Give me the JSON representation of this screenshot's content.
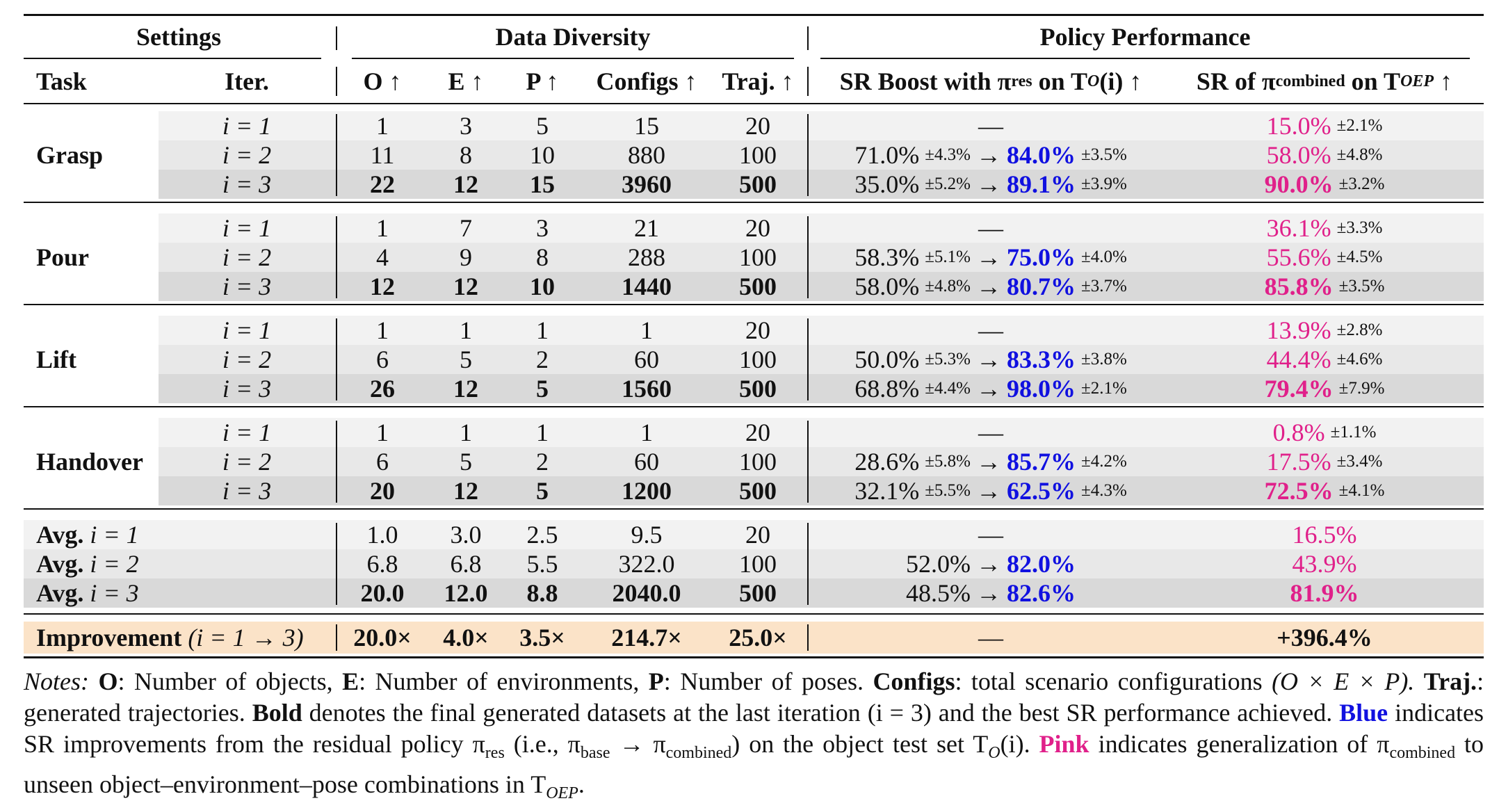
{
  "header": {
    "settings": "Settings",
    "data_diversity": "Data Diversity",
    "policy_performance": "Policy Performance",
    "task": "Task",
    "iter": "Iter.",
    "o": "O ↑",
    "e": "E ↑",
    "p": "P ↑",
    "configs": "Configs ↑",
    "traj": "Traj. ↑",
    "sr_boost": "SR Boost with π",
    "sr_boost_sub": "res",
    "sr_boost_on": "on T",
    "sr_boost_tail": "(i) ↑",
    "sr_of": "SR of π",
    "sr_of_sub": "combined",
    "sr_of_on": "on T",
    "sr_of_tail": "↑",
    "o_sub": "O",
    "oep_sub": "OEP"
  },
  "tasks": [
    {
      "name": "Grasp",
      "rows": [
        {
          "iter": "i = 1",
          "o": "1",
          "e": "3",
          "p": "5",
          "configs": "15",
          "traj": "20",
          "base": "—",
          "base_pm": "",
          "boost": "",
          "boost_pm": "",
          "comb": "15.0%",
          "comb_pm": "±2.1%"
        },
        {
          "iter": "i = 2",
          "o": "11",
          "e": "8",
          "p": "10",
          "configs": "880",
          "traj": "100",
          "base": "71.0%",
          "base_pm": "±4.3%",
          "boost": "84.0%",
          "boost_pm": "±3.5%",
          "comb": "58.0%",
          "comb_pm": "±4.8%"
        },
        {
          "iter": "i = 3",
          "o": "22",
          "e": "12",
          "p": "15",
          "configs": "3960",
          "traj": "500",
          "base": "35.0%",
          "base_pm": "±5.2%",
          "boost": "89.1%",
          "boost_pm": "±3.9%",
          "comb": "90.0%",
          "comb_pm": "±3.2%"
        }
      ]
    },
    {
      "name": "Pour",
      "rows": [
        {
          "iter": "i = 1",
          "o": "1",
          "e": "7",
          "p": "3",
          "configs": "21",
          "traj": "20",
          "base": "—",
          "base_pm": "",
          "boost": "",
          "boost_pm": "",
          "comb": "36.1%",
          "comb_pm": "±3.3%"
        },
        {
          "iter": "i = 2",
          "o": "4",
          "e": "9",
          "p": "8",
          "configs": "288",
          "traj": "100",
          "base": "58.3%",
          "base_pm": "±5.1%",
          "boost": "75.0%",
          "boost_pm": "±4.0%",
          "comb": "55.6%",
          "comb_pm": "±4.5%"
        },
        {
          "iter": "i = 3",
          "o": "12",
          "e": "12",
          "p": "10",
          "configs": "1440",
          "traj": "500",
          "base": "58.0%",
          "base_pm": "±4.8%",
          "boost": "80.7%",
          "boost_pm": "±3.7%",
          "comb": "85.8%",
          "comb_pm": "±3.5%"
        }
      ]
    },
    {
      "name": "Lift",
      "rows": [
        {
          "iter": "i = 1",
          "o": "1",
          "e": "1",
          "p": "1",
          "configs": "1",
          "traj": "20",
          "base": "—",
          "base_pm": "",
          "boost": "",
          "boost_pm": "",
          "comb": "13.9%",
          "comb_pm": "±2.8%"
        },
        {
          "iter": "i = 2",
          "o": "6",
          "e": "5",
          "p": "2",
          "configs": "60",
          "traj": "100",
          "base": "50.0%",
          "base_pm": "±5.3%",
          "boost": "83.3%",
          "boost_pm": "±3.8%",
          "comb": "44.4%",
          "comb_pm": "±4.6%"
        },
        {
          "iter": "i = 3",
          "o": "26",
          "e": "12",
          "p": "5",
          "configs": "1560",
          "traj": "500",
          "base": "68.8%",
          "base_pm": "±4.4%",
          "boost": "98.0%",
          "boost_pm": "±2.1%",
          "comb": "79.4%",
          "comb_pm": "±7.9%"
        }
      ]
    },
    {
      "name": "Handover",
      "rows": [
        {
          "iter": "i = 1",
          "o": "1",
          "e": "1",
          "p": "1",
          "configs": "1",
          "traj": "20",
          "base": "—",
          "base_pm": "",
          "boost": "",
          "boost_pm": "",
          "comb": "0.8%",
          "comb_pm": "±1.1%"
        },
        {
          "iter": "i = 2",
          "o": "6",
          "e": "5",
          "p": "2",
          "configs": "60",
          "traj": "100",
          "base": "28.6%",
          "base_pm": "±5.8%",
          "boost": "85.7%",
          "boost_pm": "±4.2%",
          "comb": "17.5%",
          "comb_pm": "±3.4%"
        },
        {
          "iter": "i = 3",
          "o": "20",
          "e": "12",
          "p": "5",
          "configs": "1200",
          "traj": "500",
          "base": "32.1%",
          "base_pm": "±5.5%",
          "boost": "62.5%",
          "boost_pm": "±4.3%",
          "comb": "72.5%",
          "comb_pm": "±4.1%"
        }
      ]
    }
  ],
  "averages": [
    {
      "label": "Avg.",
      "iter": "i = 1",
      "o": "1.0",
      "e": "3.0",
      "p": "2.5",
      "configs": "9.5",
      "traj": "20",
      "base": "—",
      "boost": "",
      "comb": "16.5%"
    },
    {
      "label": "Avg.",
      "iter": "i = 2",
      "o": "6.8",
      "e": "6.8",
      "p": "5.5",
      "configs": "322.0",
      "traj": "100",
      "base": "52.0%",
      "boost": "82.0%",
      "comb": "43.9%"
    },
    {
      "label": "Avg.",
      "iter": "i = 3",
      "o": "20.0",
      "e": "12.0",
      "p": "8.8",
      "configs": "2040.0",
      "traj": "500",
      "base": "48.5%",
      "boost": "82.6%",
      "comb": "81.9%"
    }
  ],
  "improvement": {
    "label": "Improvement",
    "range": "(i = 1 → 3)",
    "o": "20.0×",
    "e": "4.0×",
    "p": "3.5×",
    "configs": "214.7×",
    "traj": "25.0×",
    "boost": "—",
    "comb": "+396.4%"
  },
  "notes": {
    "notes_label": "Notes:",
    "o_key": "O",
    "o_desc": ": Number of objects,",
    "e_key": "E",
    "e_desc": ": Number of environments,",
    "p_key": "P",
    "p_desc": ": Number of poses.",
    "configs_key": "Configs",
    "configs_desc": ": total scenario configurations",
    "formula": "(O × E × P).",
    "traj_key": "Traj.",
    "traj_desc": ": generated trajectories.",
    "bold_key": "Bold",
    "bold_desc": "denotes the final generated datasets at the last iteration (i = 3) and the best SR performance achieved.",
    "blue_key": "Blue",
    "blue_desc_1": "indicates SR improvements from the residual policy π",
    "blue_sub_res": "res",
    "blue_desc_2": "(i.e., π",
    "blue_sub_base": "base",
    "blue_desc_3": "→ π",
    "blue_sub_comb": "combined",
    "blue_desc_4": ") on the object test set T",
    "blue_sub_o": "O",
    "blue_desc_5": "(i).",
    "pink_key": "Pink",
    "pink_desc_1": "indicates generalization of π",
    "pink_sub_comb": "combined",
    "pink_desc_2": "to unseen object–environment–pose combinations in T",
    "pink_sub_oep": "OEP",
    "pink_desc_3": "."
  },
  "colors": {
    "blue": "#1010e0",
    "pink": "#e0208a",
    "improvement_bg": "#fbe3c8",
    "row_shade_1": "#f2f2f2",
    "row_shade_2": "#e8e8e8",
    "row_shade_3": "#d9d9d9"
  }
}
